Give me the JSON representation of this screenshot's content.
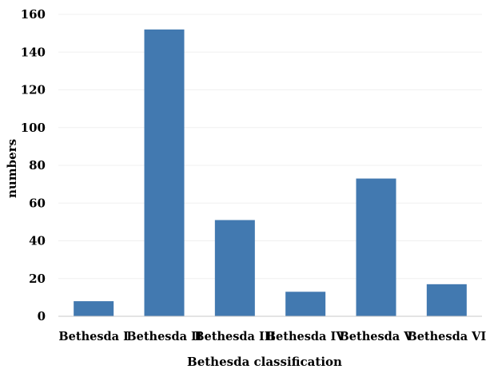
{
  "chart_data": {
    "type": "bar",
    "title": "",
    "xlabel": "Bethesda classification",
    "ylabel": "numbers",
    "categories": [
      "Bethesda I",
      "Bethesda II",
      "Bethesda III",
      "Bethesda IV",
      "Bethesda V",
      "Bethesda VI"
    ],
    "values": [
      8,
      152,
      51,
      13,
      73,
      17
    ],
    "ylim": [
      0,
      160
    ],
    "yticks": [
      "0",
      "20",
      "40",
      "60",
      "80",
      "100",
      "120",
      "140",
      "160"
    ],
    "grid": true,
    "legend": "none",
    "bar_color": "#4279b0"
  }
}
